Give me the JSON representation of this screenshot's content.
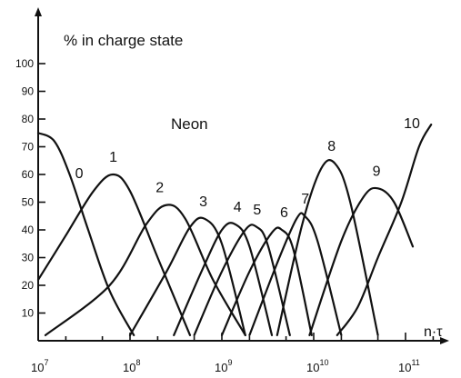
{
  "chart_data": {
    "type": "line",
    "title": "% in charge state",
    "annotation": "Neon",
    "xlabel": "n·τ",
    "xscale": "log",
    "xlim": [
      10000000.0,
      200000000000.0
    ],
    "ylim": [
      0,
      100
    ],
    "grid": false,
    "x_ticks": [
      {
        "base": "10",
        "exp": "7"
      },
      {
        "base": "10",
        "exp": "8"
      },
      {
        "base": "10",
        "exp": "9"
      },
      {
        "base": "10",
        "exp": "10"
      },
      {
        "base": "10",
        "exp": "11"
      }
    ],
    "y_ticks": [
      "10",
      "20",
      "30",
      "40",
      "50",
      "60",
      "70",
      "80",
      "90",
      "100"
    ],
    "series": [
      {
        "name": "0",
        "x": [
          10000000.0,
          15000000.0,
          22000000.0,
          35000000.0,
          60000000.0,
          110000000.0
        ],
        "y": [
          75,
          72,
          60,
          40,
          18,
          2
        ]
      },
      {
        "name": "1",
        "x": [
          10000000.0,
          20000000.0,
          40000000.0,
          65000000.0,
          100000000.0,
          200000000.0,
          450000000.0
        ],
        "y": [
          22,
          38,
          54,
          60,
          54,
          30,
          2
        ]
      },
      {
        "name": "2",
        "x": [
          12000000.0,
          60000000.0,
          150000000.0,
          250000000.0,
          400000000.0,
          800000000.0,
          1800000000.0
        ],
        "y": [
          2,
          20,
          42,
          49,
          44,
          22,
          2
        ]
      },
      {
        "name": "3",
        "x": [
          100000000.0,
          250000000.0,
          450000000.0,
          650000000.0,
          1000000000.0,
          1800000000.0
        ],
        "y": [
          2,
          25,
          41,
          44,
          35,
          2
        ]
      },
      {
        "name": "4",
        "x": [
          300000000.0,
          600000000.0,
          1000000000.0,
          1400000000.0,
          2000000000.0,
          3500000000.0
        ],
        "y": [
          2,
          25,
          40,
          42,
          34,
          2
        ]
      },
      {
        "name": "5",
        "x": [
          500000000.0,
          1000000000.0,
          1800000000.0,
          2400000000.0,
          3200000000.0,
          5500000000.0
        ],
        "y": [
          2,
          25,
          40,
          41,
          34,
          2
        ]
      },
      {
        "name": "6",
        "x": [
          1000000000.0,
          2000000000.0,
          3500000000.0,
          4500000000.0,
          6000000000.0,
          9500000000.0
        ],
        "y": [
          2,
          25,
          39,
          40,
          33,
          2
        ]
      },
      {
        "name": "7",
        "x": [
          2000000000.0,
          4000000000.0,
          6500000000.0,
          8000000000.0,
          11000000000.0,
          20000000000.0
        ],
        "y": [
          2,
          28,
          44,
          45,
          36,
          2
        ]
      },
      {
        "name": "8",
        "x": [
          4000000000.0,
          7500000000.0,
          12000000000.0,
          17000000000.0,
          25000000000.0,
          50000000000.0
        ],
        "y": [
          2,
          42,
          62,
          64,
          50,
          2
        ]
      },
      {
        "name": "9",
        "x": [
          9000000000.0,
          20000000000.0,
          35000000000.0,
          50000000000.0,
          75000000000.0,
          120000000000.0
        ],
        "y": [
          2,
          36,
          52,
          55,
          50,
          34
        ]
      },
      {
        "name": "10",
        "x": [
          18000000000.0,
          30000000000.0,
          50000000000.0,
          90000000000.0,
          140000000000.0,
          190000000000.0
        ],
        "y": [
          2,
          12,
          30,
          50,
          70,
          78
        ]
      }
    ]
  }
}
